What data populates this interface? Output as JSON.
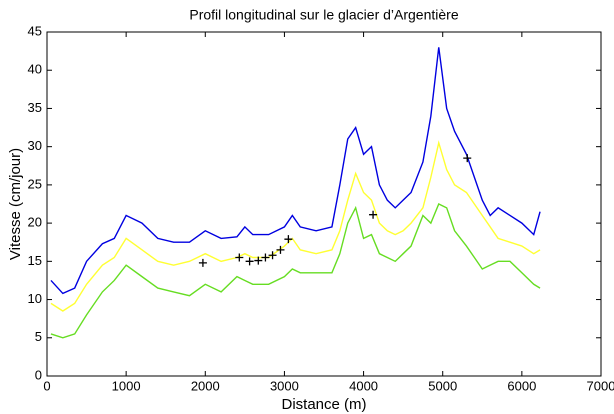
{
  "chart_data": {
    "type": "line",
    "title": "Profil longitudinal sur le glacier d’Argentière",
    "x_label": "Distance (m)",
    "y_label": "Vitesse (cm/jour)",
    "x": [
      50,
      200,
      350,
      500,
      700,
      850,
      1000,
      1200,
      1400,
      1600,
      1800,
      2000,
      2200,
      2400,
      2500,
      2600,
      2800,
      3000,
      3100,
      3200,
      3400,
      3600,
      3700,
      3800,
      3900,
      4000,
      4100,
      4200,
      4300,
      4400,
      4500,
      4600,
      4750,
      4850,
      4950,
      5050,
      5150,
      5300,
      5400,
      5500,
      5600,
      5700,
      5850,
      6000,
      6150,
      6230
    ],
    "series": [
      {
        "color": "#0000e0",
        "values": [
          12.5,
          10.8,
          11.5,
          15,
          17.3,
          18,
          21,
          20,
          18,
          17.5,
          17.5,
          19,
          18,
          18.2,
          19.5,
          18.5,
          18.5,
          19.5,
          21,
          19.5,
          19,
          19.5,
          25,
          31,
          32.5,
          29,
          30,
          25,
          23,
          22,
          23,
          24,
          28,
          34,
          43,
          35,
          32,
          29,
          26,
          23,
          21,
          22,
          21,
          20,
          18.5,
          21.5
        ]
      },
      {
        "color": "#ffff33",
        "values": [
          9.5,
          8.5,
          9.5,
          12,
          14.5,
          15.5,
          18,
          16.5,
          15,
          14.5,
          15,
          16,
          15,
          15.5,
          16,
          15.5,
          15.5,
          17,
          18,
          16.5,
          16,
          16.5,
          19,
          23,
          26.5,
          24,
          23,
          20,
          19,
          18.5,
          19,
          20,
          22,
          26,
          30.5,
          27,
          25,
          24,
          22.5,
          21,
          19.5,
          18,
          17.5,
          17,
          16,
          16.5
        ]
      },
      {
        "color": "#66dd22",
        "values": [
          5.5,
          5,
          5.5,
          8,
          11,
          12.5,
          14.5,
          13,
          11.5,
          11,
          10.5,
          12,
          11,
          13,
          12.5,
          12,
          12,
          13,
          14,
          13.5,
          13.5,
          13.5,
          16,
          20,
          22,
          18,
          18.5,
          16,
          15.5,
          15,
          16,
          17,
          21,
          20,
          22.5,
          22,
          19,
          17,
          15.5,
          14,
          14.5,
          15,
          15,
          13.5,
          12,
          11.5
        ]
      }
    ],
    "points": {
      "color": "#000000",
      "x": [
        1970,
        2430,
        2560,
        2670,
        2760,
        2850,
        2950,
        3050,
        4120,
        5310
      ],
      "y": [
        14.8,
        15.5,
        15,
        15.1,
        15.5,
        15.8,
        16.5,
        17.9,
        21.1,
        28.5
      ]
    },
    "xlim": [
      0,
      7000
    ],
    "xticks": [
      0,
      1000,
      2000,
      3000,
      4000,
      5000,
      6000,
      7000
    ],
    "ylim": [
      0,
      45
    ],
    "yticks": [
      0,
      5,
      10,
      15,
      20,
      25,
      30,
      35,
      40,
      45
    ]
  }
}
